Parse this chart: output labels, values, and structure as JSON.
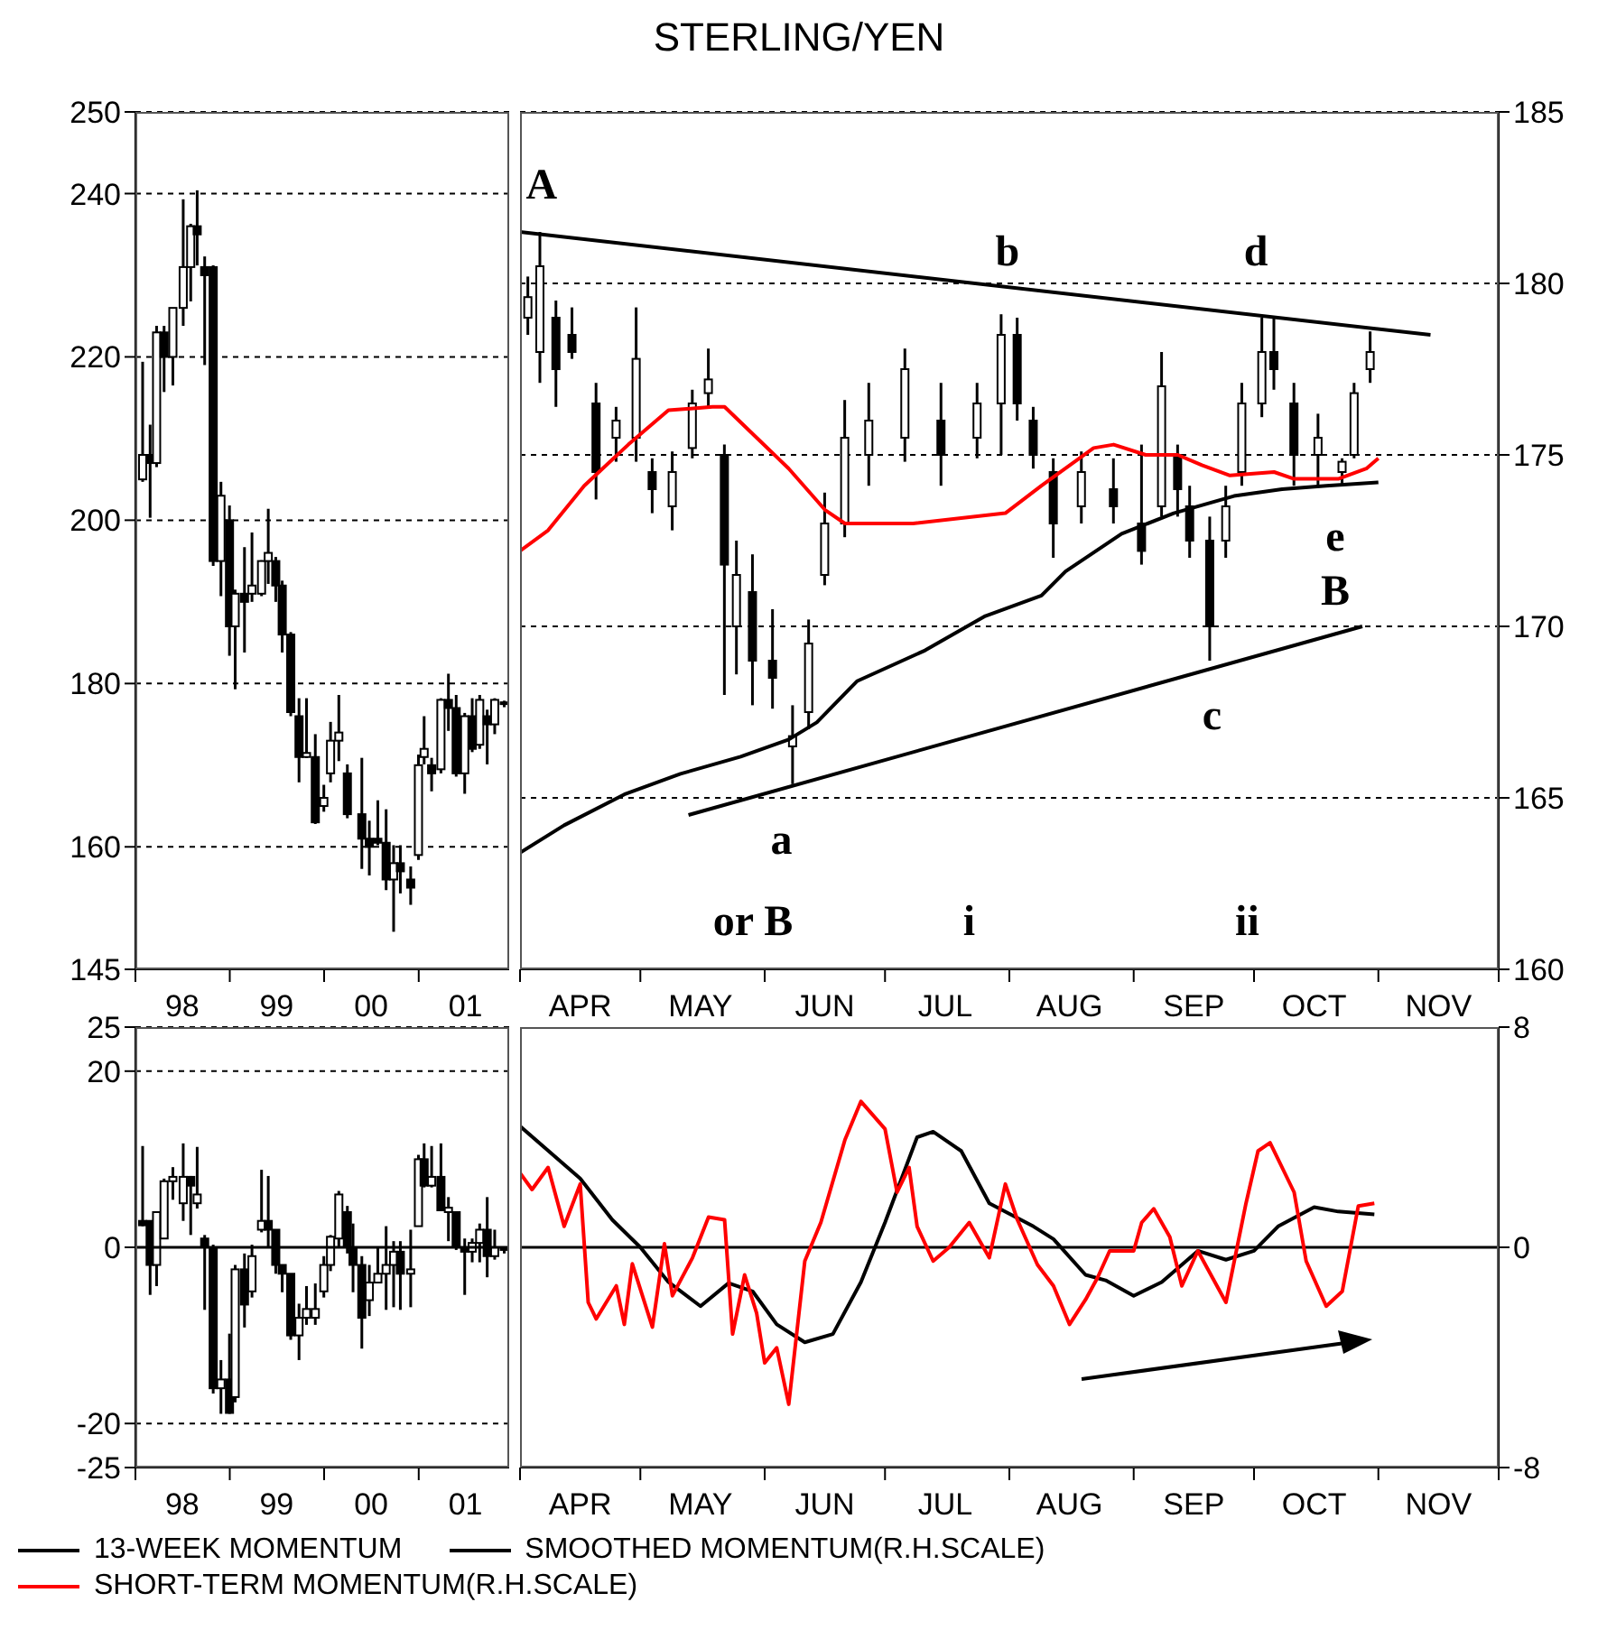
{
  "chart_data": [
    {
      "type": "candlestick",
      "xlim": [
        "1998-01-01",
        "2001-12-17"
      ],
      "xticks": [
        {
          "value": "1998-01-01",
          "label": null
        },
        {
          "value": "1998-07-01",
          "label": "98"
        },
        {
          "value": "1999-01-01",
          "label": null
        },
        {
          "value": "1999-07-01",
          "label": "99"
        },
        {
          "value": "2000-01-01",
          "label": null
        },
        {
          "value": "2000-07-01",
          "label": "00"
        },
        {
          "value": "2001-01-01",
          "label": null
        },
        {
          "value": "2001-07-01",
          "label": "01"
        }
      ],
      "ylim": [
        145,
        250
      ],
      "yticks": [
        145,
        160,
        180,
        200,
        220,
        240,
        250
      ],
      "grid": "y",
      "series": [
        {
          "color": "#000000",
          "x": [
            "1998-01-30",
            "1998-02-28",
            "1998-03-25",
            "1998-04-23",
            "1998-05-27",
            "1998-07-06",
            "1998-08-04",
            "1998-08-29",
            "1998-09-27",
            "1998-10-30",
            "1998-11-29",
            "1999-01-01",
            "1999-01-23",
            "1999-02-28",
            "1999-03-29",
            "1999-05-05",
            "1999-05-31",
            "1999-06-29",
            "1999-07-24",
            "1999-08-26",
            "1999-09-27",
            "1999-10-26",
            "1999-11-29",
            "2000-01-01",
            "2000-01-27",
            "2000-02-28",
            "2000-04-01",
            "2000-05-27",
            "2000-06-25",
            "2000-07-28",
            "2000-08-29",
            "2000-09-27",
            "2000-10-23",
            "2000-12-02",
            "2001-01-01",
            "2001-01-23",
            "2001-02-21",
            "2001-03-29",
            "2001-04-27",
            "2001-05-27",
            "2001-06-29",
            "2001-07-28",
            "2001-08-26",
            "2001-09-24",
            "2001-10-23",
            "2001-11-29"
          ],
          "ohlc": [
            [
              205,
              219.4,
              204.7,
              208
            ],
            [
              208,
              211.7,
              200.3,
              207
            ],
            [
              207,
              223.8,
              206.5,
              223
            ],
            [
              223,
              223.8,
              215.7,
              220
            ],
            [
              220,
              226,
              216.5,
              226
            ],
            [
              226,
              239.3,
              223.8,
              231
            ],
            [
              231,
              236.3,
              226.8,
              236
            ],
            [
              236,
              240.4,
              231.2,
              235
            ],
            [
              231,
              232.3,
              219,
              230
            ],
            [
              231,
              231.2,
              194.4,
              195
            ],
            [
              195,
              204.7,
              190.7,
              203
            ],
            [
              200,
              201.8,
              183.4,
              187
            ],
            [
              187,
              191.5,
              179.3,
              191
            ],
            [
              191,
              196.7,
              183.8,
              190
            ],
            [
              191,
              198.5,
              190,
              192
            ],
            [
              191,
              195.1,
              190.7,
              195
            ],
            [
              195,
              201.4,
              192.2,
              196
            ],
            [
              195,
              195.5,
              190,
              192
            ],
            [
              192,
              192.6,
              183.8,
              186
            ],
            [
              186,
              186.3,
              176,
              176.5
            ],
            [
              176,
              178.2,
              167.9,
              171
            ],
            [
              171,
              178.2,
              170.9,
              171.5
            ],
            [
              171,
              173.8,
              162.8,
              163
            ],
            [
              165,
              167.6,
              164.3,
              166
            ],
            [
              169,
              175.3,
              167.9,
              173
            ],
            [
              173,
              178.6,
              170.5,
              174
            ],
            [
              169,
              170.1,
              163.5,
              164
            ],
            [
              164,
              170.9,
              157.3,
              161
            ],
            [
              161,
              163.2,
              156.5,
              160
            ],
            [
              161,
              165.7,
              160.2,
              160.5
            ],
            [
              160.5,
              164.6,
              154.7,
              156
            ],
            [
              156,
              160.2,
              149.6,
              158
            ],
            [
              158,
              160.2,
              154.3,
              157
            ],
            [
              156,
              157.6,
              152.9,
              155
            ],
            [
              159,
              171.3,
              158.4,
              170
            ],
            [
              171,
              176,
              170.1,
              172
            ],
            [
              170,
              170.9,
              166.8,
              169
            ],
            [
              169.5,
              178.2,
              169,
              178
            ],
            [
              178,
              181.2,
              174.2,
              177
            ],
            [
              177,
              178.6,
              168.6,
              169
            ],
            [
              169,
              176.4,
              166.5,
              176
            ],
            [
              176,
              178.2,
              171.6,
              172
            ],
            [
              172.5,
              178.6,
              172,
              178
            ],
            [
              176,
              176.8,
              170.1,
              175
            ],
            [
              175,
              178.2,
              173.8,
              178
            ],
            [
              177.5,
              177.9,
              177.1,
              177.7
            ]
          ]
        }
      ]
    },
    {
      "type": "candlestick",
      "title": "STERLING/YEN",
      "xlim": [
        "--04-01",
        "--12-01"
      ],
      "xticks": [
        {
          "value": "--04-01",
          "label": null
        },
        {
          "value": "--04-16",
          "label": "APR"
        },
        {
          "value": "--05-01",
          "label": null
        },
        {
          "value": "--05-16",
          "label": "MAY"
        },
        {
          "value": "--06-01",
          "label": null
        },
        {
          "value": "--06-16",
          "label": "JUN"
        },
        {
          "value": "--07-01",
          "label": null
        },
        {
          "value": "--07-16",
          "label": "JUL"
        },
        {
          "value": "--08-01",
          "label": null
        },
        {
          "value": "--08-16",
          "label": "AUG"
        },
        {
          "value": "--09-01",
          "label": null
        },
        {
          "value": "--09-16",
          "label": "SEP"
        },
        {
          "value": "--10-01",
          "label": null
        },
        {
          "value": "--10-16",
          "label": "OCT"
        },
        {
          "value": "--11-01",
          "label": null
        },
        {
          "value": "--11-16",
          "label": "NOV"
        },
        {
          "value": "--12-01",
          "label": null
        }
      ],
      "ylim": [
        160,
        185
      ],
      "yticks": [
        160,
        165,
        170,
        175,
        180,
        185
      ],
      "grid": "y",
      "series": [
        {
          "type": "line",
          "color": "#ff0000",
          "x": [
            "--04-01",
            "--04-08",
            "--04-17",
            "--04-28",
            "--05-08",
            "--05-19",
            "--05-22",
            "--05-30",
            "--06-07",
            "--06-16",
            "--06-21",
            "--07-08",
            "--07-31",
            "--08-09",
            "--08-22",
            "--08-27",
            "--09-04",
            "--09-12",
            "--09-18",
            "--09-25",
            "--10-06",
            "--10-11",
            "--10-22",
            "--10-29",
            "--11-01"
          ],
          "values": [
            172.2,
            172.8,
            174.1,
            175.3,
            176.3,
            176.4,
            176.4,
            175.5,
            174.6,
            173.4,
            173.0,
            173.0,
            173.3,
            174.1,
            175.2,
            175.3,
            175.0,
            175.0,
            174.7,
            174.4,
            174.5,
            174.3,
            174.3,
            174.6,
            174.9
          ]
        },
        {
          "type": "line",
          "color": "#000000",
          "x": [
            "--04-01",
            "--04-12",
            "--04-27",
            "--05-11",
            "--05-26",
            "--06-07",
            "--06-14",
            "--06-24",
            "--07-11",
            "--07-26",
            "--08-09",
            "--08-15",
            "--08-29",
            "--09-11",
            "--09-26",
            "--10-08",
            "--10-19",
            "--11-01"
          ],
          "values": [
            163.4,
            164.2,
            165.1,
            165.7,
            166.2,
            166.7,
            167.2,
            168.4,
            169.3,
            170.3,
            170.9,
            171.6,
            172.7,
            173.3,
            173.8,
            174.0,
            174.1,
            174.2
          ]
        },
        {
          "type": "line",
          "color": "#000000",
          "x": [
            "--04-01",
            "--11-14"
          ],
          "values": [
            181.5,
            178.5
          ]
        },
        {
          "type": "line",
          "color": "#000000",
          "x": [
            "--05-13",
            "--10-28"
          ],
          "values": [
            164.5,
            170.0
          ]
        },
        {
          "color": "#000000",
          "x": [
            "--04-03",
            "--04-06",
            "--04-10",
            "--04-14",
            "--04-20",
            "--04-25",
            "--04-30",
            "--05-04",
            "--05-09",
            "--05-14",
            "--05-18",
            "--05-22",
            "--05-25",
            "--05-29",
            "--06-03",
            "--06-08",
            "--06-12",
            "--06-16",
            "--06-21",
            "--06-27",
            "--07-06",
            "--07-15",
            "--07-24",
            "--07-30",
            "--08-03",
            "--08-07",
            "--08-12",
            "--08-19",
            "--08-27",
            "--09-03",
            "--09-08",
            "--09-12",
            "--09-15",
            "--09-20",
            "--09-24",
            "--09-28",
            "--10-03",
            "--10-06",
            "--10-11",
            "--10-17",
            "--10-23",
            "--10-26",
            "--10-30"
          ],
          "ohlc": [
            [
              179,
              180.2,
              178.5,
              179.6
            ],
            [
              178,
              181.5,
              177.1,
              180.5
            ],
            [
              179,
              179.5,
              176.4,
              177.5
            ],
            [
              178.5,
              179.3,
              177.8,
              178
            ],
            [
              176.5,
              177.1,
              173.7,
              174.5
            ],
            [
              175.5,
              176.4,
              174.8,
              176
            ],
            [
              175.5,
              179.3,
              174.8,
              177.8
            ],
            [
              174.5,
              174.9,
              173.3,
              174
            ],
            [
              173.5,
              175.1,
              172.8,
              174.5
            ],
            [
              175.2,
              176.9,
              174.9,
              176.5
            ],
            [
              176.8,
              178.1,
              176.4,
              177.2
            ],
            [
              175,
              175.3,
              168,
              171.8
            ],
            [
              170,
              172.5,
              168.6,
              171.5
            ],
            [
              171,
              172.1,
              167.7,
              169
            ],
            [
              169,
              170.5,
              167.6,
              168.5
            ],
            [
              166.5,
              167.7,
              165.4,
              166.8
            ],
            [
              167.5,
              170.2,
              167,
              169.5
            ],
            [
              171.5,
              173.9,
              171.2,
              173
            ],
            [
              173,
              176.6,
              172.6,
              175.5
            ],
            [
              175,
              177.1,
              174.1,
              176
            ],
            [
              175.5,
              178.1,
              174.8,
              177.5
            ],
            [
              176,
              177.1,
              174.1,
              175
            ],
            [
              175.5,
              177.1,
              174.9,
              176.5
            ],
            [
              176.5,
              179.1,
              175,
              178.5
            ],
            [
              178.5,
              179,
              176,
              176.5
            ],
            [
              176,
              176.4,
              174.6,
              175
            ],
            [
              174.5,
              174.9,
              172,
              173
            ],
            [
              173.5,
              175.1,
              173,
              174.5
            ],
            [
              174,
              174.9,
              173,
              173.5
            ],
            [
              173,
              175.3,
              171.8,
              172.2
            ],
            [
              173.5,
              178,
              173.2,
              177
            ],
            [
              175,
              175.3,
              173.2,
              174
            ],
            [
              173.5,
              174.1,
              172,
              172.5
            ],
            [
              172.5,
              173.2,
              169,
              170
            ],
            [
              172.5,
              174.1,
              172,
              173.5
            ],
            [
              174.5,
              177.1,
              174.1,
              176.5
            ],
            [
              176.5,
              179,
              176.1,
              178
            ],
            [
              178,
              179,
              176.9,
              177.5
            ],
            [
              176.5,
              177.1,
              174.1,
              175
            ],
            [
              175,
              176.2,
              174.1,
              175.5
            ],
            [
              174.5,
              174.9,
              174.1,
              174.8
            ],
            [
              175,
              177.1,
              174.9,
              176.8
            ],
            [
              177.5,
              178.6,
              177.1,
              178
            ]
          ]
        }
      ],
      "annotations": [
        "A",
        "b",
        "d",
        "a",
        "c",
        "e",
        "B",
        "or B",
        "i",
        "ii"
      ]
    },
    {
      "type": "candlestick",
      "xlim": [
        "1998-01-01",
        "2001-12-17"
      ],
      "xticks": [
        {
          "value": "1998-01-01",
          "label": null
        },
        {
          "value": "1998-07-01",
          "label": "98"
        },
        {
          "value": "1999-01-01",
          "label": null
        },
        {
          "value": "1999-07-01",
          "label": "99"
        },
        {
          "value": "2000-01-01",
          "label": null
        },
        {
          "value": "2000-07-01",
          "label": "00"
        },
        {
          "value": "2001-01-01",
          "label": null
        },
        {
          "value": "2001-07-01",
          "label": "01"
        }
      ],
      "ylim": [
        -25,
        25
      ],
      "yticks": [
        -25,
        -20,
        0,
        20,
        25
      ],
      "grid": "y",
      "legend": "bottom",
      "ref_lines": [
        {
          "axis": "y",
          "value": 0
        }
      ],
      "series": [
        {
          "name": "13-WEEK MOMENTUM",
          "color": "#000000",
          "x": [
            "1998-01-30",
            "1998-02-28",
            "1998-03-25",
            "1998-04-23",
            "1998-05-27",
            "1998-07-06",
            "1998-08-04",
            "1998-08-29",
            "1998-09-27",
            "1998-10-30",
            "1998-11-29",
            "1999-01-01",
            "1999-01-23",
            "1999-02-28",
            "1999-03-29",
            "1999-05-05",
            "1999-05-31",
            "1999-06-29",
            "1999-07-24",
            "1999-08-26",
            "1999-09-27",
            "1999-10-26",
            "1999-11-29",
            "2000-01-01",
            "2000-01-27",
            "2000-02-28",
            "2000-04-01",
            "2000-04-23",
            "2000-05-27",
            "2000-06-25",
            "2000-07-28",
            "2000-08-29",
            "2000-09-27",
            "2000-10-23",
            "2000-12-02",
            "2001-01-01",
            "2001-01-23",
            "2001-02-21",
            "2001-03-29",
            "2001-04-27",
            "2001-05-27",
            "2001-06-29",
            "2001-07-28",
            "2001-08-26",
            "2001-09-24",
            "2001-10-23",
            "2001-11-29"
          ],
          "ohlc": [
            [
              3,
              11.5,
              2.4,
              2.5
            ],
            [
              3,
              3,
              -5.4,
              -2
            ],
            [
              -2,
              4.1,
              -4.4,
              4
            ],
            [
              1,
              7.8,
              1,
              7.5
            ],
            [
              7.5,
              9.1,
              5.4,
              8
            ],
            [
              5,
              11.8,
              3,
              8
            ],
            [
              8,
              8.1,
              1.4,
              7
            ],
            [
              5,
              11.4,
              4.4,
              6
            ],
            [
              1,
              1.4,
              -7.1,
              0
            ],
            [
              0,
              0.3,
              -16.6,
              -16
            ],
            [
              -16,
              -12.8,
              -18.9,
              -15
            ],
            [
              -15,
              -9.8,
              -18.9,
              -18.8
            ],
            [
              -17,
              -2,
              -17.6,
              -2.5
            ],
            [
              -2.5,
              -0.7,
              -9.1,
              -6.5
            ],
            [
              -5,
              0.3,
              -5.7,
              -1
            ],
            [
              2,
              8.8,
              1.7,
              3
            ],
            [
              3,
              8.1,
              0,
              2
            ],
            [
              2,
              2,
              -3,
              -2
            ],
            [
              -2,
              -2,
              -5.1,
              -3
            ],
            [
              -3,
              -3,
              -10.5,
              -10
            ],
            [
              -10,
              -6.4,
              -12.8,
              -8
            ],
            [
              -8,
              -4.4,
              -8.8,
              -7
            ],
            [
              -8,
              -4.1,
              -8.8,
              -7
            ],
            [
              -5,
              -1,
              -5.7,
              -2
            ],
            [
              -2,
              1.4,
              -2.7,
              1.2
            ],
            [
              1,
              6.4,
              0,
              6
            ],
            [
              4,
              4.7,
              -0.7,
              0
            ],
            [
              0,
              2.7,
              -5.1,
              -2
            ],
            [
              -2,
              -1,
              -11.5,
              -8
            ],
            [
              -6,
              -2,
              -7.8,
              -4
            ],
            [
              -4,
              0,
              -4.1,
              -3
            ],
            [
              -3,
              2.4,
              -7.1,
              -2
            ],
            [
              -2,
              0.7,
              -6.8,
              -0.5
            ],
            [
              -0.5,
              0.7,
              -7.1,
              -3
            ],
            [
              -3,
              2,
              -6.8,
              -2.5
            ],
            [
              2.4,
              10.5,
              2.4,
              10
            ],
            [
              10,
              11.8,
              6.8,
              7
            ],
            [
              7,
              11.5,
              6.8,
              8
            ],
            [
              8,
              11.8,
              4.1,
              4.2
            ],
            [
              4,
              5.7,
              0.7,
              4.5
            ],
            [
              4,
              4.1,
              -0.3,
              0
            ],
            [
              0,
              1,
              -5.4,
              -0.5
            ],
            [
              -0.5,
              1,
              -1.7,
              0.5
            ],
            [
              0.5,
              2.7,
              -1.7,
              2
            ],
            [
              2,
              5.7,
              -3.4,
              -1
            ],
            [
              -1,
              2,
              -1.4,
              0
            ],
            [
              0,
              0,
              -0.7,
              -0.3
            ]
          ]
        }
      ]
    },
    {
      "type": "line",
      "xlim": [
        "--04-01",
        "--12-01"
      ],
      "xticks": [
        {
          "value": "--04-01",
          "label": null
        },
        {
          "value": "--04-16",
          "label": "APR"
        },
        {
          "value": "--05-01",
          "label": null
        },
        {
          "value": "--05-16",
          "label": "MAY"
        },
        {
          "value": "--06-01",
          "label": null
        },
        {
          "value": "--06-16",
          "label": "JUN"
        },
        {
          "value": "--07-01",
          "label": null
        },
        {
          "value": "--07-16",
          "label": "JUL"
        },
        {
          "value": "--08-01",
          "label": null
        },
        {
          "value": "--08-16",
          "label": "AUG"
        },
        {
          "value": "--09-01",
          "label": null
        },
        {
          "value": "--09-16",
          "label": "SEP"
        },
        {
          "value": "--10-01",
          "label": null
        },
        {
          "value": "--10-16",
          "label": "OCT"
        },
        {
          "value": "--11-01",
          "label": null
        },
        {
          "value": "--11-16",
          "label": "NOV"
        },
        {
          "value": "--12-01",
          "label": null
        }
      ],
      "ylim": [
        -8,
        8
      ],
      "yticks": [
        -8,
        0,
        8
      ],
      "legend": "bottom",
      "ref_lines": [
        {
          "axis": "y",
          "value": 0
        }
      ],
      "series": [
        {
          "name": "SMOOTHED MOMENTUM(R.H.SCALE)",
          "color": "#000000",
          "x": [
            "--04-01",
            "--04-16",
            "--04-24",
            "--05-01",
            "--05-08",
            "--05-16",
            "--05-23",
            "--05-29",
            "--06-04",
            "--06-11",
            "--06-18",
            "--06-25",
            "--07-01",
            "--07-09",
            "--07-13",
            "--07-20",
            "--07-27",
            "--08-07",
            "--08-12",
            "--08-20",
            "--08-25",
            "--09-01",
            "--09-08",
            "--09-17",
            "--09-24",
            "--10-01",
            "--10-07",
            "--10-16",
            "--10-22",
            "--10-31"
          ],
          "values": [
            4.4,
            2.5,
            1.0,
            0,
            -1.26,
            -2.14,
            -1.3,
            -1.6,
            -2.8,
            -3.45,
            -3.15,
            -1.26,
            0.9,
            4.0,
            4.2,
            3.5,
            1.6,
            0.76,
            0.3,
            -1.0,
            -1.2,
            -1.76,
            -1.26,
            -0.13,
            -0.45,
            -0.13,
            0.76,
            1.46,
            1.3,
            1.2
          ]
        },
        {
          "name": "SHORT-TERM MOMENTUM(R.H.SCALE)",
          "color": "#ff0000",
          "x": [
            "--04-01",
            "--04-04",
            "--04-08",
            "--04-12",
            "--04-16",
            "--04-18",
            "--04-20",
            "--04-25",
            "--04-27",
            "--04-29",
            "--05-04",
            "--05-07",
            "--05-09",
            "--05-14",
            "--05-18",
            "--05-22",
            "--05-24",
            "--05-27",
            "--05-30",
            "--06-01",
            "--06-04",
            "--06-07",
            "--06-11",
            "--06-15",
            "--06-21",
            "--06-25",
            "--07-01",
            "--07-04",
            "--07-07",
            "--07-09",
            "--07-13",
            "--07-17",
            "--07-22",
            "--07-27",
            "--07-31",
            "--08-03",
            "--08-08",
            "--08-12",
            "--08-16",
            "--08-20",
            "--08-23",
            "--08-26",
            "--09-01",
            "--09-03",
            "--09-06",
            "--09-10",
            "--09-13",
            "--09-17",
            "--09-24",
            "--09-29",
            "--10-02",
            "--10-05",
            "--10-11",
            "--10-14",
            "--10-19",
            "--10-23",
            "--10-27",
            "--10-31"
          ],
          "values": [
            2.7,
            2.1,
            2.9,
            0.76,
            2.3,
            -2.0,
            -2.6,
            -1.4,
            -2.8,
            -0.6,
            -2.9,
            0.13,
            -1.76,
            -0.38,
            1.1,
            1.0,
            -3.15,
            -1.0,
            -2.4,
            -4.2,
            -3.65,
            -5.7,
            -0.5,
            0.9,
            3.9,
            5.3,
            4.3,
            2.0,
            2.9,
            0.76,
            -0.5,
            0,
            0.9,
            -0.38,
            2.3,
            1.0,
            -0.63,
            -1.4,
            -2.8,
            -1.9,
            -1.1,
            -0.13,
            -0.13,
            0.9,
            1.4,
            0.38,
            -1.4,
            -0.13,
            -2.0,
            1.6,
            3.5,
            3.8,
            2.0,
            -0.5,
            -2.14,
            -1.6,
            1.5,
            1.6
          ]
        }
      ]
    }
  ]
}
